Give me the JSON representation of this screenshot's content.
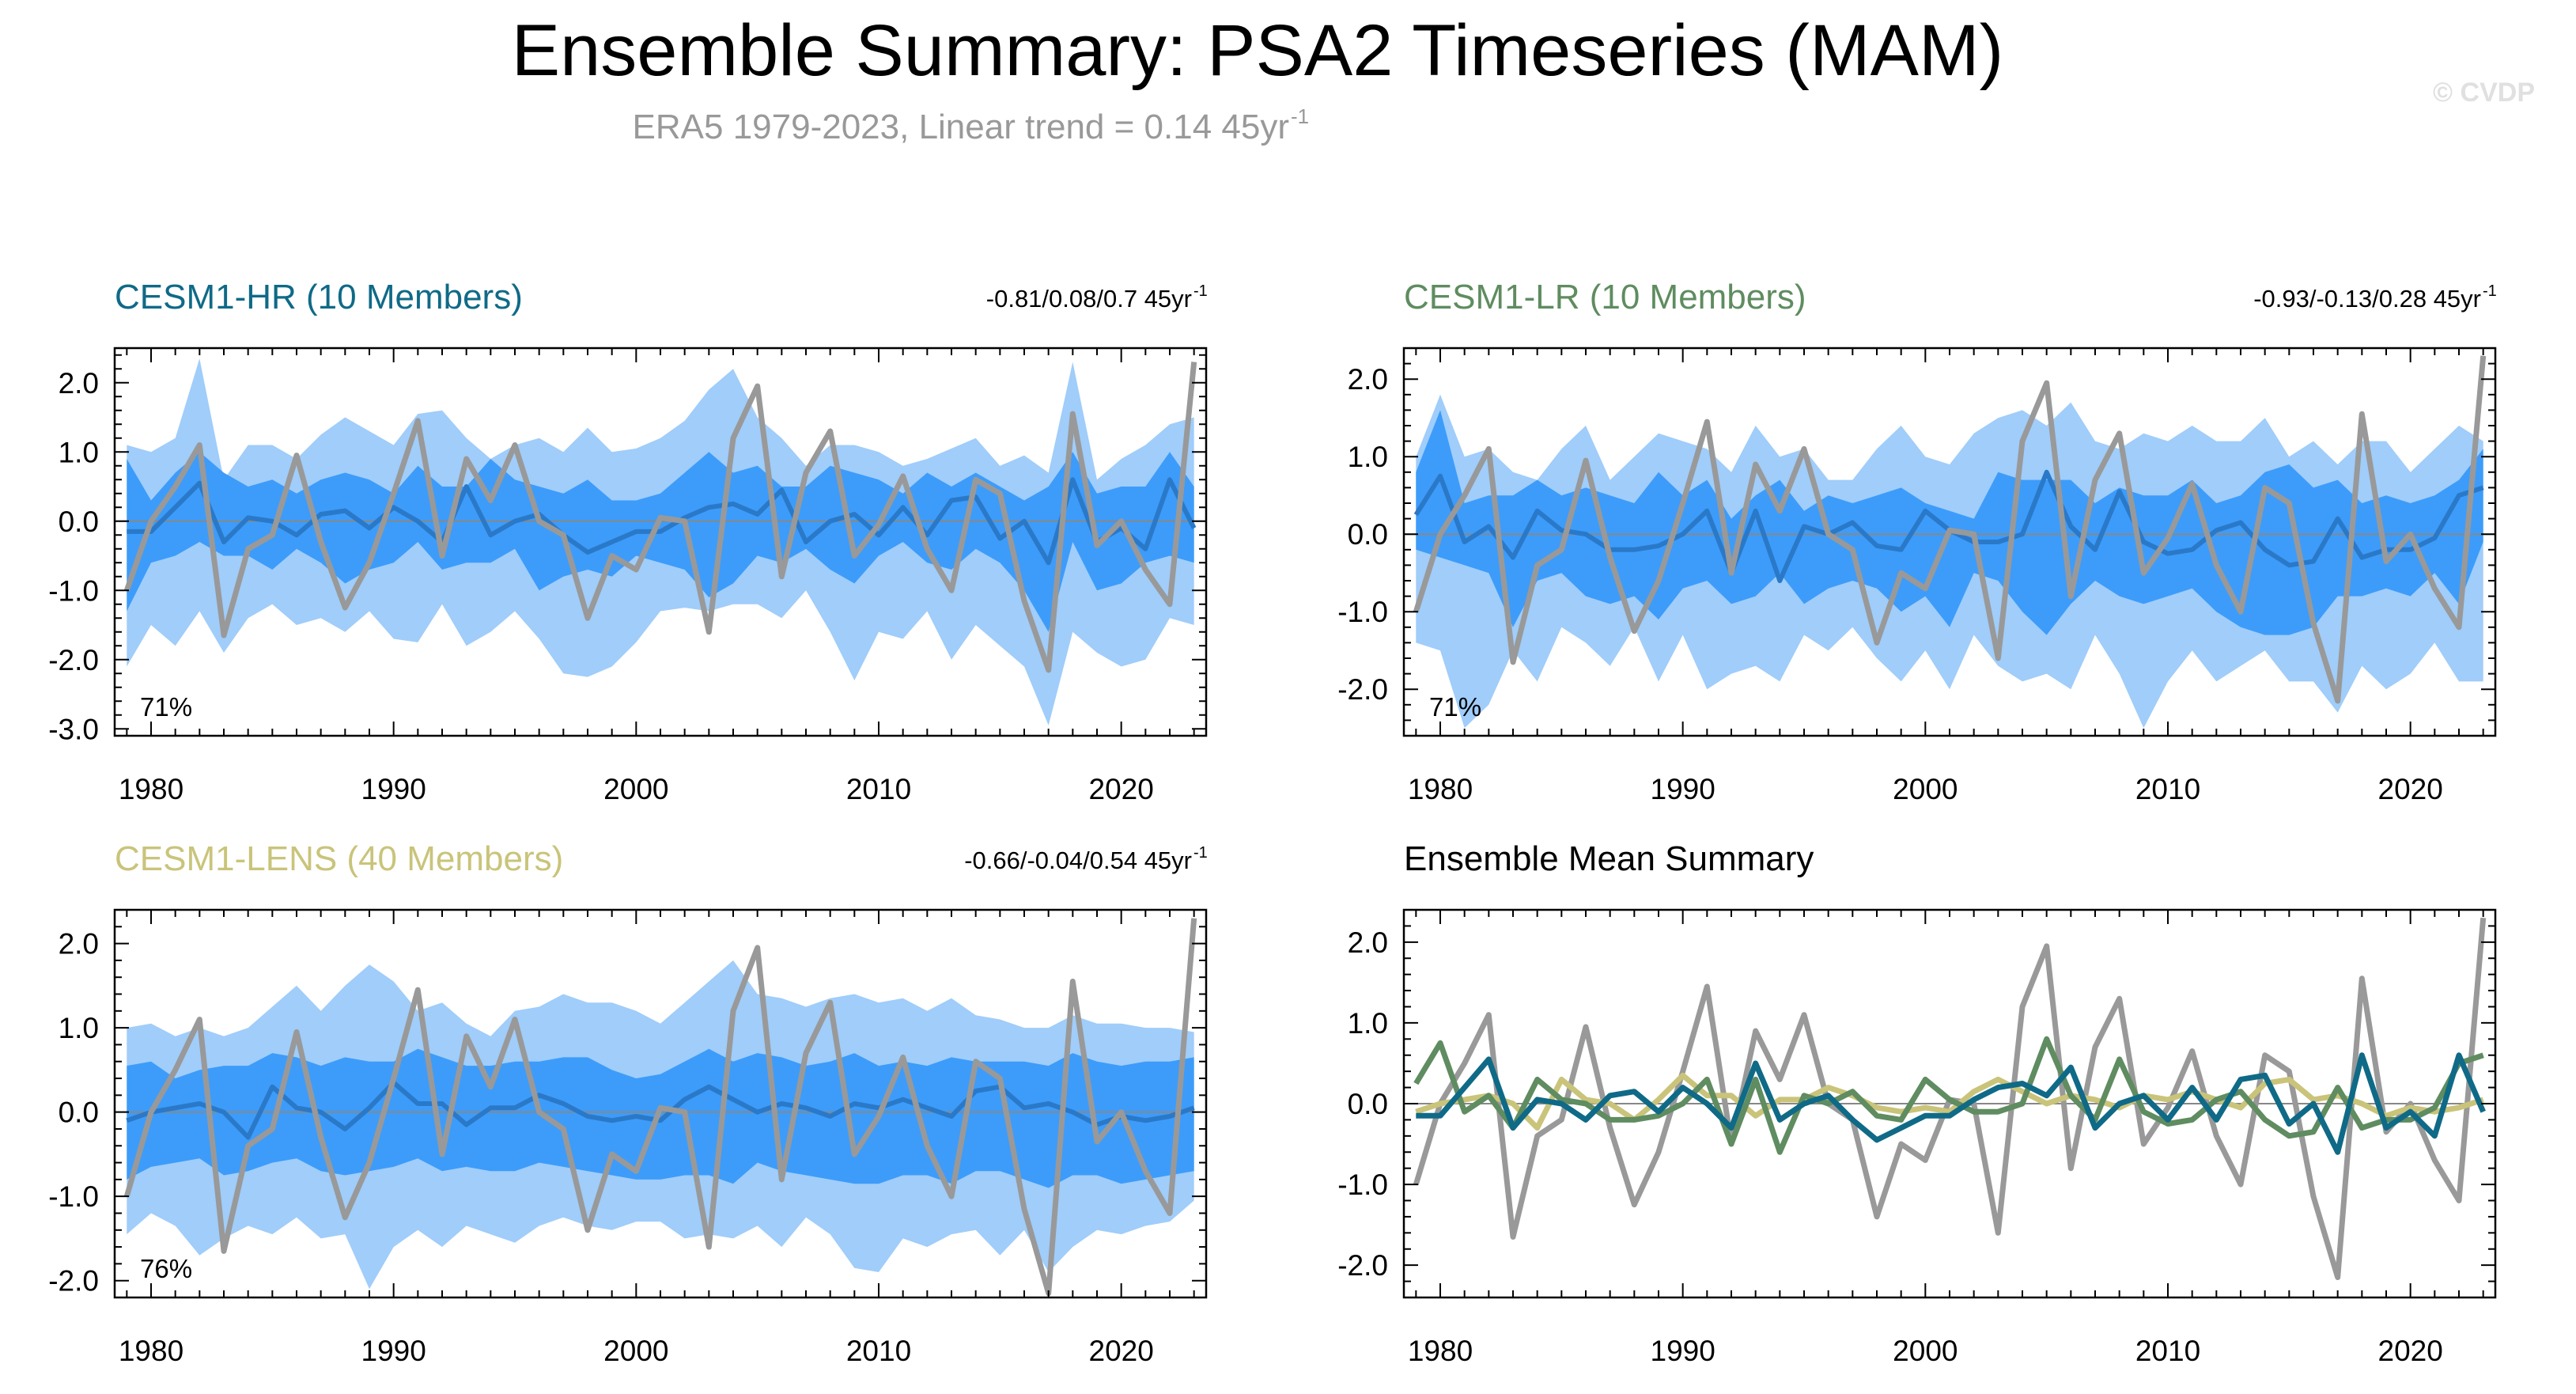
{
  "header": {
    "title": "Ensemble Summary: PSA2 Timeseries (MAM)",
    "subtitle_main": "ERA5 1979-2023, Linear trend = 0.14 45yr",
    "subtitle_sup": "-1",
    "watermark": "© CVDP"
  },
  "colors": {
    "outer_band": "#a0cdfa",
    "inner_band": "#3d9cfa",
    "ens_mean": "#2a79c8",
    "obs": "#999999",
    "cesm1_hr": "#0f6a87",
    "cesm1_lr": "#5f8c60",
    "cesm1_lens": "#c9c47a",
    "zero_line": "#888888"
  },
  "chart_data": [
    {
      "type": "area",
      "title": "CESM1-HR (10 Members)",
      "title_color": "#0f6a87",
      "trend_text": "-0.81/0.08/0.7 45yr",
      "trend_sup": "-1",
      "percent_label": "71%",
      "xlim": [
        1978.5,
        2023.5
      ],
      "ylim": [
        -3.1,
        2.5
      ],
      "yticks": [
        2.0,
        1.0,
        0.0,
        -1.0,
        -2.0,
        -3.0
      ],
      "ytick_labels": [
        "2.0",
        "1.0",
        "0.0",
        "-1.0",
        "-2.0",
        "-3.0"
      ],
      "xticks": [
        1980,
        1990,
        2000,
        2010,
        2020
      ],
      "xtick_labels": [
        "1980",
        "1990",
        "2000",
        "2010",
        "2020"
      ],
      "years_start": 1979,
      "outer_upper": [
        1.1,
        1.0,
        1.2,
        2.35,
        0.6,
        1.1,
        1.1,
        0.9,
        1.25,
        1.5,
        1.3,
        1.1,
        1.55,
        1.6,
        1.2,
        0.9,
        1.1,
        1.2,
        1.0,
        1.35,
        1.0,
        1.05,
        1.2,
        1.45,
        1.9,
        2.2,
        1.5,
        1.2,
        0.8,
        1.1,
        1.1,
        1.0,
        0.8,
        0.9,
        1.05,
        1.2,
        0.8,
        0.95,
        0.7,
        2.3,
        0.6,
        0.9,
        1.1,
        1.4,
        1.5
      ],
      "outer_lower": [
        -2.1,
        -1.5,
        -1.8,
        -1.3,
        -1.9,
        -1.4,
        -1.2,
        -1.5,
        -1.4,
        -1.6,
        -1.3,
        -1.7,
        -1.75,
        -1.2,
        -1.8,
        -1.6,
        -1.3,
        -1.7,
        -2.2,
        -2.25,
        -2.1,
        -1.75,
        -1.3,
        -1.25,
        -1.3,
        -1.2,
        -1.2,
        -1.4,
        -1.0,
        -1.6,
        -2.3,
        -1.6,
        -1.7,
        -1.3,
        -2.0,
        -1.5,
        -1.8,
        -2.1,
        -2.95,
        -1.6,
        -1.9,
        -2.1,
        -2.0,
        -1.4,
        -1.5
      ],
      "inner_upper": [
        0.9,
        0.3,
        0.7,
        1.0,
        0.7,
        0.5,
        0.6,
        0.4,
        0.6,
        0.7,
        0.6,
        0.4,
        0.8,
        0.5,
        0.5,
        0.9,
        0.6,
        0.5,
        0.4,
        0.6,
        0.3,
        0.3,
        0.4,
        0.7,
        1.0,
        0.7,
        0.8,
        0.5,
        0.5,
        0.8,
        0.7,
        0.6,
        0.4,
        0.7,
        0.5,
        0.7,
        0.5,
        0.3,
        0.5,
        1.0,
        0.4,
        0.5,
        0.5,
        1.0,
        0.5
      ],
      "inner_lower": [
        -1.3,
        -0.6,
        -0.5,
        -0.3,
        -0.5,
        -0.5,
        -0.7,
        -0.4,
        -0.6,
        -0.9,
        -0.7,
        -0.6,
        -0.3,
        -0.7,
        -0.6,
        -0.6,
        -0.4,
        -1.0,
        -0.8,
        -0.7,
        -0.8,
        -0.5,
        -0.6,
        -0.7,
        -1.1,
        -0.9,
        -0.5,
        -0.6,
        -0.4,
        -0.7,
        -0.9,
        -0.5,
        -0.3,
        -0.6,
        -0.7,
        -0.4,
        -0.6,
        -1.0,
        -1.6,
        -0.3,
        -1.0,
        -0.9,
        -0.6,
        -0.5,
        -0.6
      ],
      "ens_mean": [
        -0.15,
        -0.15,
        0.2,
        0.55,
        -0.3,
        0.05,
        0.0,
        -0.2,
        0.1,
        0.15,
        -0.1,
        0.2,
        0.0,
        -0.3,
        0.5,
        -0.2,
        0.0,
        0.1,
        -0.2,
        -0.45,
        -0.3,
        -0.15,
        -0.15,
        0.05,
        0.2,
        0.25,
        0.1,
        0.45,
        -0.3,
        0.0,
        0.1,
        -0.2,
        0.2,
        -0.2,
        0.3,
        0.35,
        -0.25,
        0.0,
        -0.6,
        0.6,
        -0.3,
        -0.1,
        -0.4,
        0.6,
        -0.1
      ],
      "obs": [
        -1.0,
        0.0,
        0.5,
        1.1,
        -1.65,
        -0.4,
        -0.2,
        0.95,
        -0.3,
        -1.25,
        -0.6,
        0.4,
        1.45,
        -0.5,
        0.9,
        0.3,
        1.1,
        0.0,
        -0.2,
        -1.4,
        -0.5,
        -0.7,
        0.05,
        0.0,
        -1.6,
        1.2,
        1.95,
        -0.8,
        0.7,
        1.3,
        -0.5,
        -0.05,
        0.65,
        -0.4,
        -1.0,
        0.6,
        0.4,
        -1.15,
        -2.15,
        1.55,
        -0.35,
        0.0,
        -0.7,
        -1.2,
        2.3
      ]
    },
    {
      "type": "area",
      "title": "CESM1-LR (10 Members)",
      "title_color": "#5f8c60",
      "trend_text": "-0.93/-0.13/0.28 45yr",
      "trend_sup": "-1",
      "percent_label": "71%",
      "xlim": [
        1978.5,
        2023.5
      ],
      "ylim": [
        -2.6,
        2.4
      ],
      "yticks": [
        2.0,
        1.0,
        0.0,
        -1.0,
        -2.0
      ],
      "ytick_labels": [
        "2.0",
        "1.0",
        "0.0",
        "-1.0",
        "-2.0"
      ],
      "xticks": [
        1980,
        1990,
        2000,
        2010,
        2020
      ],
      "xtick_labels": [
        "1980",
        "1990",
        "2000",
        "2010",
        "2020"
      ],
      "years_start": 1979,
      "outer_upper": [
        1.0,
        1.8,
        1.0,
        1.1,
        0.8,
        0.7,
        1.1,
        1.4,
        0.7,
        1.0,
        1.3,
        1.2,
        1.1,
        0.8,
        1.4,
        1.0,
        1.1,
        0.7,
        0.7,
        1.1,
        1.4,
        1.0,
        0.9,
        1.3,
        1.5,
        1.6,
        1.4,
        1.7,
        1.2,
        1.1,
        1.3,
        1.2,
        1.4,
        1.2,
        1.2,
        1.5,
        1.0,
        1.2,
        0.9,
        1.2,
        1.2,
        0.8,
        1.1,
        1.4,
        1.2
      ],
      "outer_lower": [
        -1.4,
        -1.5,
        -2.5,
        -2.2,
        -1.5,
        -1.9,
        -1.2,
        -1.4,
        -1.7,
        -1.2,
        -1.9,
        -1.3,
        -2.0,
        -1.8,
        -1.7,
        -1.9,
        -1.3,
        -1.5,
        -1.2,
        -1.6,
        -1.9,
        -1.5,
        -2.0,
        -1.3,
        -1.7,
        -1.9,
        -1.8,
        -2.0,
        -1.3,
        -1.8,
        -2.5,
        -1.9,
        -1.5,
        -1.9,
        -1.7,
        -1.5,
        -1.9,
        -1.9,
        -2.3,
        -1.7,
        -2.0,
        -1.8,
        -1.4,
        -1.9,
        -1.9
      ],
      "inner_upper": [
        0.8,
        1.6,
        0.4,
        0.5,
        0.5,
        0.7,
        0.5,
        0.6,
        0.5,
        0.4,
        0.8,
        0.5,
        0.7,
        0.2,
        0.5,
        0.7,
        0.3,
        0.5,
        0.4,
        0.5,
        0.6,
        0.4,
        0.3,
        0.2,
        0.8,
        0.7,
        0.7,
        0.7,
        0.4,
        0.6,
        0.5,
        0.5,
        0.7,
        0.4,
        0.5,
        0.8,
        0.9,
        0.6,
        0.7,
        0.4,
        0.5,
        0.4,
        0.5,
        0.7,
        1.1
      ],
      "inner_lower": [
        -0.2,
        -0.3,
        -0.4,
        -0.5,
        -1.2,
        -0.6,
        -0.5,
        -0.8,
        -0.9,
        -0.8,
        -1.1,
        -0.7,
        -0.6,
        -0.9,
        -0.8,
        -0.5,
        -0.9,
        -0.7,
        -0.6,
        -0.7,
        -1.0,
        -0.8,
        -1.2,
        -0.5,
        -0.6,
        -1.0,
        -1.3,
        -0.9,
        -0.6,
        -0.8,
        -0.9,
        -0.8,
        -0.7,
        -1.0,
        -1.2,
        -1.3,
        -1.3,
        -1.2,
        -0.8,
        -0.8,
        -0.7,
        -0.8,
        -0.5,
        -0.9,
        -0.1
      ],
      "ens_mean": [
        0.25,
        0.75,
        -0.1,
        0.1,
        -0.3,
        0.3,
        0.05,
        0.0,
        -0.2,
        -0.2,
        -0.15,
        0.0,
        0.3,
        -0.5,
        0.3,
        -0.6,
        0.1,
        0.0,
        0.15,
        -0.15,
        -0.2,
        0.3,
        0.05,
        -0.1,
        -0.1,
        0.0,
        0.8,
        0.1,
        -0.2,
        0.55,
        -0.1,
        -0.25,
        -0.2,
        0.05,
        0.15,
        -0.2,
        -0.4,
        -0.35,
        0.2,
        -0.3,
        -0.2,
        -0.2,
        -0.05,
        0.5,
        0.6
      ],
      "obs": [
        -1.0,
        0.0,
        0.5,
        1.1,
        -1.65,
        -0.4,
        -0.2,
        0.95,
        -0.3,
        -1.25,
        -0.6,
        0.4,
        1.45,
        -0.5,
        0.9,
        0.3,
        1.1,
        0.0,
        -0.2,
        -1.4,
        -0.5,
        -0.7,
        0.05,
        0.0,
        -1.6,
        1.2,
        1.95,
        -0.8,
        0.7,
        1.3,
        -0.5,
        -0.05,
        0.65,
        -0.4,
        -1.0,
        0.6,
        0.4,
        -1.15,
        -2.15,
        1.55,
        -0.35,
        0.0,
        -0.7,
        -1.2,
        2.3
      ]
    },
    {
      "type": "area",
      "title": "CESM1-LENS (40 Members)",
      "title_color": "#c9c47a",
      "trend_text": "-0.66/-0.04/0.54 45yr",
      "trend_sup": "-1",
      "percent_label": "76%",
      "xlim": [
        1978.5,
        2023.5
      ],
      "ylim": [
        -2.2,
        2.4
      ],
      "yticks": [
        2.0,
        1.0,
        0.0,
        -1.0,
        -2.0
      ],
      "ytick_labels": [
        "2.0",
        "1.0",
        "0.0",
        "-1.0",
        "-2.0"
      ],
      "xticks": [
        1980,
        1990,
        2000,
        2010,
        2020
      ],
      "xtick_labels": [
        "1980",
        "1990",
        "2000",
        "2010",
        "2020"
      ],
      "years_start": 1979,
      "outer_upper": [
        1.0,
        1.05,
        0.9,
        1.0,
        0.9,
        1.0,
        1.25,
        1.5,
        1.2,
        1.5,
        1.75,
        1.55,
        1.2,
        1.3,
        1.05,
        0.9,
        1.2,
        1.25,
        1.4,
        1.3,
        1.3,
        1.2,
        1.05,
        1.3,
        1.55,
        1.8,
        1.4,
        1.35,
        1.25,
        1.35,
        1.4,
        1.3,
        1.35,
        1.2,
        1.35,
        1.15,
        1.1,
        1.0,
        1.0,
        1.15,
        1.05,
        1.05,
        1.0,
        1.0,
        0.95
      ],
      "outer_lower": [
        -1.45,
        -1.2,
        -1.35,
        -1.7,
        -1.5,
        -1.35,
        -1.45,
        -1.25,
        -1.5,
        -1.45,
        -2.1,
        -1.6,
        -1.4,
        -1.6,
        -1.35,
        -1.45,
        -1.55,
        -1.35,
        -1.25,
        -1.35,
        -1.4,
        -1.3,
        -1.3,
        -1.5,
        -1.45,
        -1.5,
        -1.35,
        -1.6,
        -1.25,
        -1.45,
        -1.85,
        -1.9,
        -1.5,
        -1.6,
        -1.45,
        -1.4,
        -1.7,
        -1.4,
        -1.9,
        -1.6,
        -1.4,
        -1.45,
        -1.35,
        -1.3,
        -1.05
      ],
      "inner_upper": [
        0.55,
        0.6,
        0.4,
        0.5,
        0.55,
        0.55,
        0.7,
        0.65,
        0.55,
        0.65,
        0.6,
        0.6,
        0.75,
        0.65,
        0.55,
        0.55,
        0.6,
        0.6,
        0.65,
        0.65,
        0.5,
        0.4,
        0.45,
        0.6,
        0.75,
        0.6,
        0.7,
        0.65,
        0.55,
        0.6,
        0.7,
        0.55,
        0.6,
        0.55,
        0.65,
        0.6,
        0.6,
        0.6,
        0.55,
        0.7,
        0.6,
        0.55,
        0.6,
        0.6,
        0.65
      ],
      "inner_lower": [
        -0.8,
        -0.65,
        -0.6,
        -0.55,
        -0.75,
        -0.7,
        -0.6,
        -0.55,
        -0.7,
        -0.75,
        -0.7,
        -0.65,
        -0.55,
        -0.7,
        -0.65,
        -0.7,
        -0.7,
        -0.6,
        -0.65,
        -0.7,
        -0.75,
        -0.8,
        -0.8,
        -0.75,
        -0.75,
        -0.85,
        -0.6,
        -0.7,
        -0.75,
        -0.8,
        -0.85,
        -0.85,
        -0.75,
        -0.75,
        -0.85,
        -0.7,
        -0.7,
        -0.8,
        -0.9,
        -0.75,
        -0.75,
        -0.85,
        -0.8,
        -0.75,
        -0.7
      ],
      "ens_mean": [
        -0.1,
        0.0,
        0.05,
        0.1,
        0.0,
        -0.3,
        0.3,
        0.05,
        0.0,
        -0.2,
        0.05,
        0.35,
        0.1,
        0.1,
        -0.15,
        0.05,
        0.05,
        0.2,
        0.1,
        -0.05,
        -0.1,
        -0.05,
        -0.1,
        0.15,
        0.3,
        0.15,
        0.0,
        0.1,
        0.05,
        -0.05,
        0.1,
        0.05,
        0.15,
        0.05,
        -0.05,
        0.25,
        0.3,
        0.05,
        0.1,
        0.0,
        -0.15,
        -0.05,
        -0.1,
        -0.05,
        0.05
      ],
      "obs": [
        -1.0,
        0.0,
        0.5,
        1.1,
        -1.65,
        -0.4,
        -0.2,
        0.95,
        -0.3,
        -1.25,
        -0.6,
        0.4,
        1.45,
        -0.5,
        0.9,
        0.3,
        1.1,
        0.0,
        -0.2,
        -1.4,
        -0.5,
        -0.7,
        0.05,
        0.0,
        -1.6,
        1.2,
        1.95,
        -0.8,
        0.7,
        1.3,
        -0.5,
        -0.05,
        0.65,
        -0.4,
        -1.0,
        0.6,
        0.4,
        -1.15,
        -2.15,
        1.55,
        -0.35,
        0.0,
        -0.7,
        -1.2,
        2.3
      ]
    },
    {
      "type": "line",
      "title": "Ensemble Mean Summary",
      "title_color": "#000000",
      "xlim": [
        1978.5,
        2023.5
      ],
      "ylim": [
        -2.4,
        2.4
      ],
      "yticks": [
        2.0,
        1.0,
        0.0,
        -1.0,
        -2.0
      ],
      "ytick_labels": [
        "2.0",
        "1.0",
        "0.0",
        "-1.0",
        "-2.0"
      ],
      "xticks": [
        1980,
        1990,
        2000,
        2010,
        2020
      ],
      "xtick_labels": [
        "1980",
        "1990",
        "2000",
        "2010",
        "2020"
      ],
      "years_start": 1979,
      "series": [
        {
          "name": "ERA5",
          "color": "#999999",
          "values": [
            -1.0,
            0.0,
            0.5,
            1.1,
            -1.65,
            -0.4,
            -0.2,
            0.95,
            -0.3,
            -1.25,
            -0.6,
            0.4,
            1.45,
            -0.5,
            0.9,
            0.3,
            1.1,
            0.0,
            -0.2,
            -1.4,
            -0.5,
            -0.7,
            0.05,
            0.0,
            -1.6,
            1.2,
            1.95,
            -0.8,
            0.7,
            1.3,
            -0.5,
            -0.05,
            0.65,
            -0.4,
            -1.0,
            0.6,
            0.4,
            -1.15,
            -2.15,
            1.55,
            -0.35,
            0.0,
            -0.7,
            -1.2,
            2.3
          ]
        },
        {
          "name": "CESM1-LENS",
          "color": "#c9c47a",
          "values": [
            -0.1,
            0.0,
            0.05,
            0.1,
            0.0,
            -0.3,
            0.3,
            0.05,
            0.0,
            -0.2,
            0.05,
            0.35,
            0.1,
            0.1,
            -0.15,
            0.05,
            0.05,
            0.2,
            0.1,
            -0.05,
            -0.1,
            -0.05,
            -0.1,
            0.15,
            0.3,
            0.15,
            0.0,
            0.1,
            0.05,
            -0.05,
            0.1,
            0.05,
            0.15,
            0.05,
            -0.05,
            0.25,
            0.3,
            0.05,
            0.1,
            0.0,
            -0.15,
            -0.05,
            -0.1,
            -0.05,
            0.05
          ]
        },
        {
          "name": "CESM1-LR",
          "color": "#5f8c60",
          "values": [
            0.25,
            0.75,
            -0.1,
            0.1,
            -0.3,
            0.3,
            0.05,
            0.0,
            -0.2,
            -0.2,
            -0.15,
            0.0,
            0.3,
            -0.5,
            0.3,
            -0.6,
            0.1,
            0.0,
            0.15,
            -0.15,
            -0.2,
            0.3,
            0.05,
            -0.1,
            -0.1,
            0.0,
            0.8,
            0.1,
            -0.2,
            0.55,
            -0.1,
            -0.25,
            -0.2,
            0.05,
            0.15,
            -0.2,
            -0.4,
            -0.35,
            0.2,
            -0.3,
            -0.2,
            -0.2,
            -0.05,
            0.5,
            0.6
          ]
        },
        {
          "name": "CESM1-HR",
          "color": "#0f6a87",
          "values": [
            -0.15,
            -0.15,
            0.2,
            0.55,
            -0.3,
            0.05,
            0.0,
            -0.2,
            0.1,
            0.15,
            -0.1,
            0.2,
            0.0,
            -0.3,
            0.5,
            -0.2,
            0.0,
            0.1,
            -0.2,
            -0.45,
            -0.3,
            -0.15,
            -0.15,
            0.05,
            0.2,
            0.25,
            0.1,
            0.45,
            -0.3,
            0.0,
            0.1,
            -0.2,
            0.2,
            -0.2,
            0.3,
            0.35,
            -0.25,
            0.0,
            -0.6,
            0.6,
            -0.3,
            -0.1,
            -0.4,
            0.6,
            -0.1
          ]
        }
      ]
    }
  ]
}
